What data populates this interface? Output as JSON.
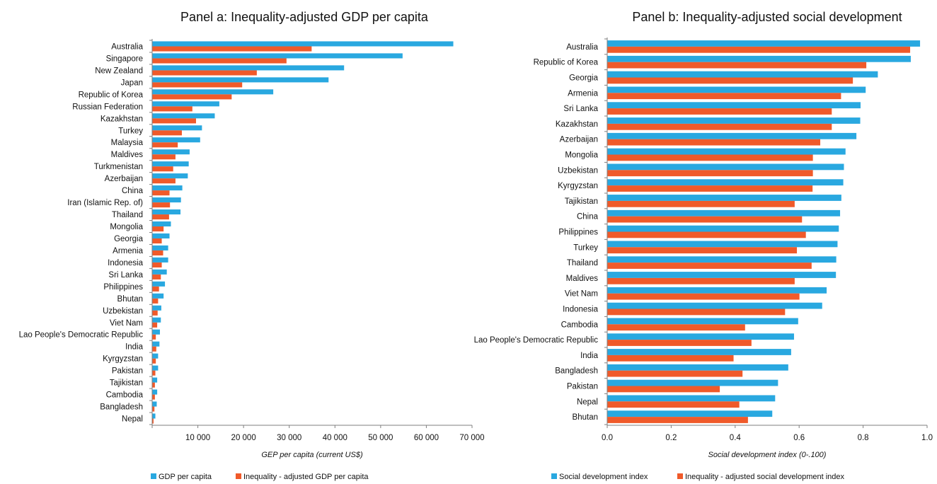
{
  "chart_data": [
    {
      "type": "bar",
      "orientation": "horizontal",
      "title": "Panel a: Inequality-adjusted GDP per capita",
      "xlabel": "GEP per capita (current  US$)",
      "ylabel": "",
      "xlim": [
        0,
        70000
      ],
      "xticks": [
        10000,
        20000,
        30000,
        40000,
        50000,
        60000,
        70000
      ],
      "xtick_labels": [
        "10 000",
        "20  000",
        "30  000",
        "40  000",
        "50  000",
        "60  000",
        "70  000"
      ],
      "grid": false,
      "legend_position": "bottom-left",
      "colors": {
        "series1": "#29A8E0",
        "series2": "#F05A2A"
      },
      "categories": [
        "Australia",
        "Singapore",
        "New Zealand",
        "Japan",
        "Republic of Korea",
        "Russian Federation",
        "Kazakhstan",
        "Turkey",
        "Malaysia",
        "Maldives",
        "Turkmenistan",
        "Azerbaijan",
        "China",
        "Iran (Islamic Rep. of)",
        "Thailand",
        "Mongolia",
        "Georgia",
        "Armenia",
        "Indonesia",
        "Sri Lanka",
        "Philippines",
        "Bhutan",
        "Uzbekistan",
        "Viet Nam",
        "Lao People's Democratic Republic",
        "India",
        "Kyrgyzstan",
        "Pakistan",
        "Tajikistan",
        "Cambodia",
        "Bangladesh",
        "Nepal"
      ],
      "series": [
        {
          "name": "GDP per capita",
          "values": [
            65900,
            54800,
            42000,
            38600,
            26500,
            14700,
            13700,
            10900,
            10500,
            8200,
            8000,
            7800,
            6600,
            6300,
            6200,
            4100,
            3800,
            3500,
            3500,
            3200,
            2800,
            2500,
            2000,
            1900,
            1700,
            1600,
            1300,
            1300,
            1100,
            1100,
            1000,
            700
          ]
        },
        {
          "name": "Inequality - adjusted  GDP per capita",
          "values": [
            34900,
            29400,
            22900,
            19700,
            17400,
            8800,
            9600,
            6500,
            5600,
            5100,
            4600,
            5100,
            3800,
            3900,
            3700,
            2500,
            2100,
            2400,
            2100,
            1900,
            1500,
            1300,
            1200,
            1100,
            800,
            900,
            800,
            700,
            600,
            600,
            500,
            300
          ]
        }
      ]
    },
    {
      "type": "bar",
      "orientation": "horizontal",
      "title": "Panel b: Inequality-adjusted social development",
      "xlabel": "Social development  index (0-.100)",
      "ylabel": "",
      "xlim": [
        0,
        1
      ],
      "xticks": [
        0,
        0.2,
        0.4,
        0.6,
        0.8,
        1
      ],
      "xtick_labels": [
        "0.0",
        "0.2",
        "0.4",
        "0.6",
        "0.8",
        "1.0"
      ],
      "grid": false,
      "legend_position": "bottom-left",
      "colors": {
        "series1": "#29A8E0",
        "series2": "#F05A2A"
      },
      "categories": [
        "Australia",
        "Republic of Korea",
        "Georgia",
        "Armenia",
        "Sri Lanka",
        "Kazakhstan",
        "Azerbaijan",
        "Mongolia",
        "Uzbekistan",
        "Kyrgyzstan",
        "Tajikistan",
        "China",
        "Philippines",
        "Turkey",
        "Thailand",
        "Maldives",
        "Viet Nam",
        "Indonesia",
        "Cambodia",
        "Lao People's Democratic Republic",
        "India",
        "Bangladesh",
        "Pakistan",
        "Nepal",
        "Bhutan"
      ],
      "series": [
        {
          "name": "Social development  index",
          "values": [
            0.978,
            0.949,
            0.846,
            0.808,
            0.792,
            0.791,
            0.779,
            0.745,
            0.74,
            0.738,
            0.732,
            0.728,
            0.724,
            0.72,
            0.716,
            0.715,
            0.686,
            0.672,
            0.597,
            0.584,
            0.575,
            0.566,
            0.534,
            0.525,
            0.516
          ]
        },
        {
          "name": "Inequality - adjusted  social development  index",
          "values": [
            0.947,
            0.81,
            0.768,
            0.731,
            0.702,
            0.702,
            0.666,
            0.643,
            0.643,
            0.642,
            0.586,
            0.609,
            0.621,
            0.593,
            0.639,
            0.586,
            0.601,
            0.556,
            0.431,
            0.451,
            0.395,
            0.423,
            0.352,
            0.413,
            0.44
          ]
        }
      ]
    }
  ]
}
